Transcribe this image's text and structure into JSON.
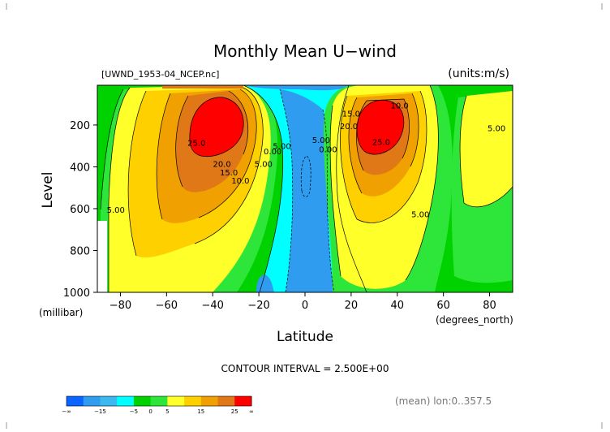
{
  "chart_data": {
    "type": "heatmap",
    "title": "Monthly Mean U−wind",
    "dataset": "[UWND_1953-04_NCEP.nc]",
    "units": "(units:m/s)",
    "xlabel": "Latitude",
    "ylabel": "Level",
    "x_units": "(degrees_north)",
    "y_units": "(millibar)",
    "xlim": [
      -90,
      90
    ],
    "ylim": [
      1000,
      10
    ],
    "x_ticks": [
      -80,
      -60,
      -40,
      -20,
      0,
      20,
      40,
      60,
      80
    ],
    "x_tick_labels": [
      "−80",
      "−60",
      "−40",
      "−20",
      "0",
      "20",
      "40",
      "60",
      "80"
    ],
    "y_ticks": [
      200,
      400,
      600,
      800,
      1000
    ],
    "contour_interval_text": "CONTOUR INTERVAL = 2.500E+00",
    "contour_interval": 2.5,
    "footer_note": "(mean) lon:0..357.5",
    "colorbar": {
      "labels": [
        "−∞",
        "−15",
        "−5",
        "0",
        "5",
        "15",
        "25",
        "∞"
      ],
      "bounds": [
        -30,
        -15,
        -5,
        0,
        5,
        15,
        25,
        30
      ],
      "colors": [
        "#0a64ff",
        "#2f9cf0",
        "#3bb8f0",
        "#00ffff",
        "#00d200",
        "#2ee63a",
        "#ffff2a",
        "#ffd000",
        "#f0a000",
        "#e07818",
        "#ff0000"
      ]
    },
    "jets": [
      {
        "lat": -40,
        "level": 190,
        "max": 27.5
      },
      {
        "lat": 29,
        "level": 180,
        "max": 27.5
      }
    ],
    "contour_labels": [
      {
        "text": "25.0",
        "lat": -47,
        "level": 300
      },
      {
        "text": "20.0",
        "lat": -36,
        "level": 400
      },
      {
        "text": "15.0",
        "lat": -33,
        "level": 440
      },
      {
        "text": "10.0",
        "lat": -28,
        "level": 480
      },
      {
        "text": "5.00",
        "lat": -18,
        "level": 400
      },
      {
        "text": "5.00",
        "lat": -10,
        "level": 315
      },
      {
        "text": "0.00",
        "lat": -14,
        "level": 340
      },
      {
        "text": "5.00",
        "lat": -82,
        "level": 620
      },
      {
        "text": "5.00",
        "lat": 7,
        "level": 285
      },
      {
        "text": "0.00",
        "lat": 10,
        "level": 330
      },
      {
        "text": "25.0",
        "lat": 33,
        "level": 295
      },
      {
        "text": "20.0",
        "lat": 19,
        "level": 220
      },
      {
        "text": "15.0",
        "lat": 20,
        "level": 160
      },
      {
        "text": "10.0",
        "lat": 41,
        "level": 120
      },
      {
        "text": "5.00",
        "lat": 50,
        "level": 640
      },
      {
        "text": "5.00",
        "lat": 83,
        "level": 230
      }
    ]
  }
}
